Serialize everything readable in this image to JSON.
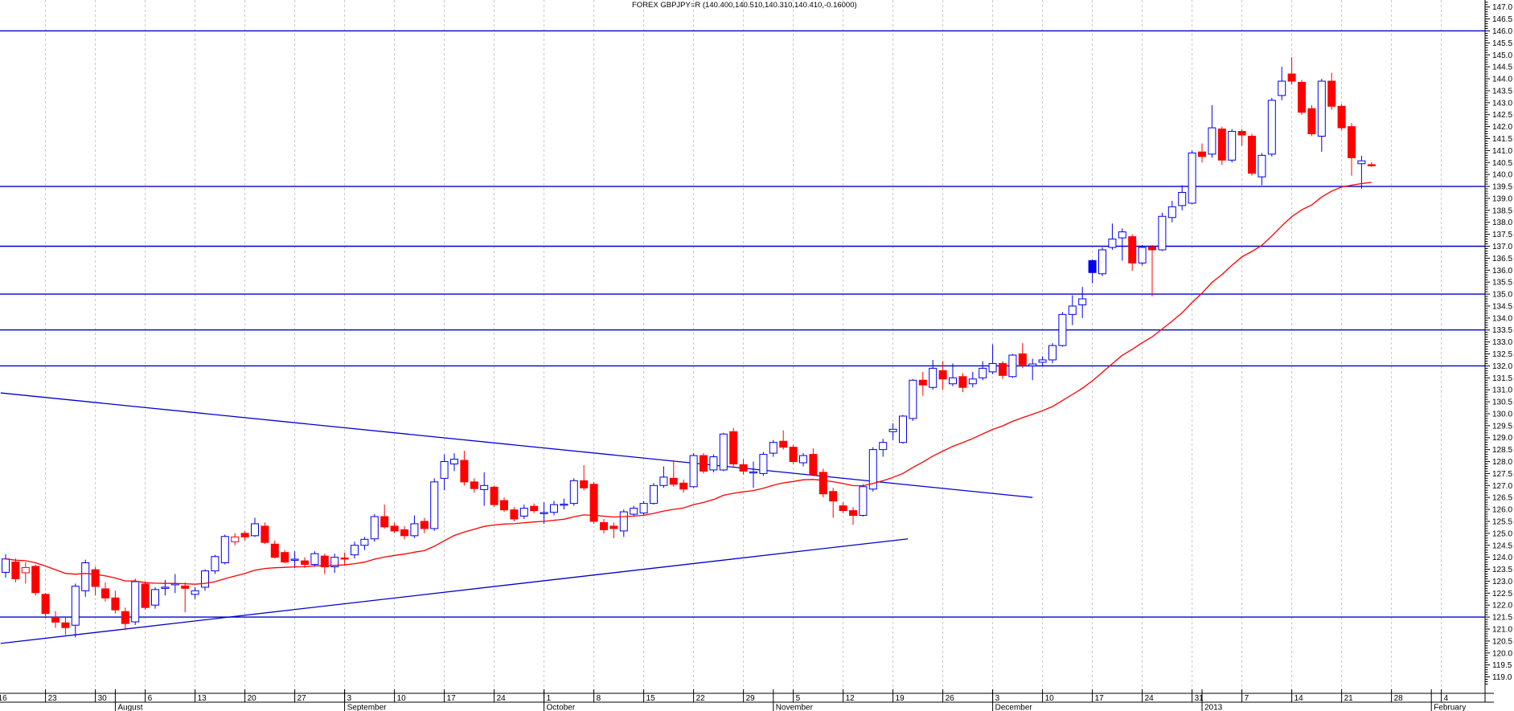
{
  "window": {
    "title": "FOREX GBPJPY=R (140.400,140.510,140.310,140.410,-0.16000)"
  },
  "colors": {
    "background": "#FFFFFF",
    "up_candle": "#0000EE",
    "up_fill": "#FFFFFF",
    "down_candle": "#FF0000",
    "special_candle_fill": "#0000EE",
    "ma_line": "#FF0000",
    "level_line": "#0000CD",
    "trend_line": "#0000CD",
    "gridline": "#C6C6C6",
    "axis": "#000000"
  },
  "chart_data": {
    "type": "candlestick",
    "title": "FOREX GBPJPY=R (140.400,140.510,140.310,140.410,-0.16000)",
    "symbol": "FOREX GBPJPY=R",
    "periodicity": "daily",
    "last_bar": {
      "open": 140.4,
      "high": 140.51,
      "low": 140.31,
      "close": 140.41,
      "change": -0.16
    },
    "y_axis": {
      "side": "right",
      "min": 119.0,
      "max": 147.0,
      "major_step": 0.5,
      "minor_step": 0.1,
      "label_decimals": 1
    },
    "x_axis": {
      "week_ticks": [
        {
          "bar": -1,
          "label": "16",
          "clipped": true
        },
        {
          "bar": 4,
          "label": "23"
        },
        {
          "bar": 9,
          "label": "30"
        },
        {
          "bar": 14,
          "label": "6"
        },
        {
          "bar": 19,
          "label": "13"
        },
        {
          "bar": 24,
          "label": "20"
        },
        {
          "bar": 29,
          "label": "27"
        },
        {
          "bar": 34,
          "label": "3"
        },
        {
          "bar": 39,
          "label": "10"
        },
        {
          "bar": 44,
          "label": "17"
        },
        {
          "bar": 49,
          "label": "24"
        },
        {
          "bar": 54,
          "label": "1"
        },
        {
          "bar": 59,
          "label": "8"
        },
        {
          "bar": 64,
          "label": "15"
        },
        {
          "bar": 69,
          "label": "22"
        },
        {
          "bar": 74,
          "label": "29"
        },
        {
          "bar": 79,
          "label": "5"
        },
        {
          "bar": 84,
          "label": "12"
        },
        {
          "bar": 89,
          "label": "19"
        },
        {
          "bar": 94,
          "label": "26"
        },
        {
          "bar": 99,
          "label": "3"
        },
        {
          "bar": 104,
          "label": "10"
        },
        {
          "bar": 109,
          "label": "17"
        },
        {
          "bar": 114,
          "label": "24"
        },
        {
          "bar": 119,
          "label": "31"
        },
        {
          "bar": 124,
          "label": "7"
        },
        {
          "bar": 129,
          "label": "14"
        },
        {
          "bar": 134,
          "label": "21"
        },
        {
          "bar": 139,
          "label": "28"
        },
        {
          "bar": 144,
          "label": "4"
        }
      ],
      "month_ticks": [
        {
          "bar": 11,
          "label": "August"
        },
        {
          "bar": 34,
          "label": "September"
        },
        {
          "bar": 54,
          "label": "October"
        },
        {
          "bar": 77,
          "label": "November"
        },
        {
          "bar": 99,
          "label": "December"
        },
        {
          "bar": 120,
          "label": "2013"
        },
        {
          "bar": 143,
          "label": "February"
        }
      ]
    },
    "horizontal_lines": [
      146.0,
      139.5,
      137.0,
      135.0,
      133.5,
      132.0,
      121.5
    ],
    "trendlines": [
      {
        "from_bar": -0.5,
        "from_price": 130.87,
        "to_bar": 103,
        "to_price": 126.5,
        "direction": "down"
      },
      {
        "from_bar": -0.5,
        "from_price": 120.4,
        "to_bar": 90.5,
        "to_price": 124.77,
        "direction": "up"
      }
    ],
    "overlays": {
      "ma": {
        "type": "ema",
        "period": 30,
        "color": "#FF0000"
      }
    },
    "candle_format": [
      "date",
      "open",
      "high",
      "low",
      "close",
      "style"
    ],
    "style_legend": {
      "u": "hollow blue (up)",
      "d": "solid red (down)",
      "hd": "hollow red",
      "sb": "solid blue"
    },
    "candles": [
      [
        "2012-07-17",
        123.37,
        124.13,
        123.15,
        123.93,
        "u"
      ],
      [
        "2012-07-18",
        123.8,
        123.95,
        122.95,
        123.1,
        "d"
      ],
      [
        "2012-07-19",
        123.35,
        123.8,
        122.9,
        123.57,
        "hd"
      ],
      [
        "2012-07-20",
        123.62,
        123.7,
        122.4,
        122.52,
        "d"
      ],
      [
        "2012-07-23",
        122.45,
        122.5,
        121.45,
        121.65,
        "d"
      ],
      [
        "2012-07-24",
        121.49,
        121.75,
        121.05,
        121.29,
        "d"
      ],
      [
        "2012-07-25",
        121.26,
        121.5,
        120.75,
        121.06,
        "d"
      ],
      [
        "2012-07-26",
        121.16,
        122.9,
        120.65,
        122.79,
        "u"
      ],
      [
        "2012-07-27",
        122.6,
        123.9,
        122.35,
        123.77,
        "u"
      ],
      [
        "2012-07-30",
        123.48,
        123.6,
        122.4,
        122.78,
        "d"
      ],
      [
        "2012-07-31",
        122.68,
        122.95,
        122.15,
        122.3,
        "d"
      ],
      [
        "2012-08-01",
        122.3,
        122.6,
        121.65,
        121.8,
        "d"
      ],
      [
        "2012-08-02",
        121.73,
        121.9,
        120.95,
        121.23,
        "d"
      ],
      [
        "2012-08-03",
        121.3,
        123.1,
        121.17,
        122.98,
        "u"
      ],
      [
        "2012-08-06",
        122.88,
        123.0,
        121.8,
        121.9,
        "d"
      ],
      [
        "2012-08-07",
        122.0,
        122.75,
        121.85,
        122.65,
        "u"
      ],
      [
        "2012-08-08",
        122.7,
        123.05,
        122.4,
        122.75,
        "u"
      ],
      [
        "2012-08-09",
        122.85,
        123.3,
        122.5,
        122.9,
        "u"
      ],
      [
        "2012-08-10",
        122.8,
        122.95,
        121.7,
        122.7,
        "d"
      ],
      [
        "2012-08-13",
        122.45,
        122.75,
        122.25,
        122.6,
        "u"
      ],
      [
        "2012-08-14",
        122.75,
        123.5,
        122.6,
        123.43,
        "u"
      ],
      [
        "2012-08-15",
        123.43,
        124.1,
        123.3,
        124.03,
        "u"
      ],
      [
        "2012-08-16",
        123.77,
        124.95,
        123.7,
        124.87,
        "u"
      ],
      [
        "2012-08-17",
        124.65,
        125.0,
        124.5,
        124.85,
        "hd"
      ],
      [
        "2012-08-20",
        125.0,
        125.1,
        124.7,
        124.85,
        "d"
      ],
      [
        "2012-08-21",
        124.9,
        125.65,
        124.85,
        125.4,
        "u"
      ],
      [
        "2012-08-22",
        125.3,
        125.45,
        124.55,
        124.62,
        "d"
      ],
      [
        "2012-08-23",
        124.55,
        124.7,
        123.95,
        124.0,
        "d"
      ],
      [
        "2012-08-24",
        124.2,
        124.3,
        123.75,
        123.8,
        "d"
      ],
      [
        "2012-08-27",
        123.88,
        124.25,
        123.55,
        123.92,
        "u"
      ],
      [
        "2012-08-28",
        123.85,
        124.0,
        123.55,
        123.7,
        "d"
      ],
      [
        "2012-08-29",
        123.7,
        124.25,
        123.6,
        124.15,
        "u"
      ],
      [
        "2012-08-30",
        124.05,
        124.15,
        123.3,
        123.6,
        "d"
      ],
      [
        "2012-08-31",
        123.6,
        124.15,
        123.35,
        124.0,
        "u"
      ],
      [
        "2012-09-03",
        123.97,
        124.2,
        123.7,
        123.93,
        "d"
      ],
      [
        "2012-09-04",
        124.1,
        124.65,
        123.95,
        124.5,
        "u"
      ],
      [
        "2012-09-05",
        124.5,
        124.85,
        124.3,
        124.75,
        "u"
      ],
      [
        "2012-09-06",
        124.77,
        125.8,
        124.65,
        125.7,
        "u"
      ],
      [
        "2012-09-07",
        125.7,
        126.2,
        125.2,
        125.27,
        "d"
      ],
      [
        "2012-09-10",
        125.3,
        125.45,
        125.0,
        125.1,
        "d"
      ],
      [
        "2012-09-11",
        125.15,
        125.3,
        124.75,
        124.9,
        "d"
      ],
      [
        "2012-09-12",
        124.9,
        125.75,
        124.8,
        125.4,
        "u"
      ],
      [
        "2012-09-13",
        125.5,
        125.65,
        125.0,
        125.2,
        "d"
      ],
      [
        "2012-09-14",
        125.2,
        127.3,
        125.1,
        127.15,
        "u"
      ],
      [
        "2012-09-17",
        127.3,
        128.3,
        126.8,
        128.0,
        "u"
      ],
      [
        "2012-09-18",
        127.9,
        128.35,
        127.6,
        128.1,
        "u"
      ],
      [
        "2012-09-19",
        128.05,
        128.45,
        127.0,
        127.15,
        "d"
      ],
      [
        "2012-09-20",
        127.15,
        127.3,
        126.7,
        126.87,
        "d"
      ],
      [
        "2012-09-21",
        126.83,
        127.55,
        126.15,
        127.0,
        "u"
      ],
      [
        "2012-09-24",
        126.93,
        127.0,
        126.1,
        126.2,
        "d"
      ],
      [
        "2012-09-25",
        126.37,
        126.5,
        125.9,
        125.98,
        "d"
      ],
      [
        "2012-09-26",
        125.98,
        126.1,
        125.5,
        125.6,
        "d"
      ],
      [
        "2012-09-27",
        125.72,
        126.2,
        125.6,
        126.05,
        "u"
      ],
      [
        "2012-09-28",
        126.13,
        126.25,
        125.85,
        125.95,
        "d"
      ],
      [
        "2012-10-01",
        125.83,
        126.3,
        125.4,
        125.87,
        "u"
      ],
      [
        "2012-10-02",
        125.88,
        126.35,
        125.75,
        126.2,
        "u"
      ],
      [
        "2012-10-03",
        126.2,
        126.45,
        126.0,
        126.22,
        "u"
      ],
      [
        "2012-10-04",
        126.25,
        127.3,
        126.15,
        127.2,
        "u"
      ],
      [
        "2012-10-05",
        127.2,
        127.85,
        126.8,
        126.9,
        "d"
      ],
      [
        "2012-10-08",
        127.05,
        127.15,
        125.4,
        125.5,
        "d"
      ],
      [
        "2012-10-09",
        125.45,
        125.6,
        125.0,
        125.15,
        "d"
      ],
      [
        "2012-10-10",
        125.3,
        125.45,
        124.8,
        125.2,
        "d"
      ],
      [
        "2012-10-11",
        125.1,
        126.0,
        124.85,
        125.9,
        "u"
      ],
      [
        "2012-10-12",
        125.8,
        126.15,
        125.7,
        126.05,
        "u"
      ],
      [
        "2012-10-15",
        125.85,
        126.35,
        125.75,
        126.25,
        "u"
      ],
      [
        "2012-10-16",
        126.25,
        127.1,
        126.2,
        127.0,
        "u"
      ],
      [
        "2012-10-17",
        127.0,
        127.8,
        126.9,
        127.35,
        "u"
      ],
      [
        "2012-10-18",
        127.3,
        128.05,
        126.95,
        127.05,
        "d"
      ],
      [
        "2012-10-19",
        127.1,
        127.25,
        126.7,
        126.85,
        "d"
      ],
      [
        "2012-10-22",
        126.95,
        128.35,
        126.9,
        128.25,
        "u"
      ],
      [
        "2012-10-23",
        128.25,
        128.35,
        127.5,
        127.6,
        "d"
      ],
      [
        "2012-10-24",
        127.65,
        128.3,
        127.55,
        128.2,
        "u"
      ],
      [
        "2012-10-25",
        127.65,
        129.2,
        127.6,
        129.15,
        "u"
      ],
      [
        "2012-10-26",
        129.25,
        129.4,
        127.75,
        127.9,
        "d"
      ],
      [
        "2012-10-29",
        127.87,
        128.1,
        127.45,
        127.6,
        "d"
      ],
      [
        "2012-10-30",
        127.53,
        128.0,
        126.9,
        127.57,
        "u"
      ],
      [
        "2012-10-31",
        127.5,
        128.4,
        127.4,
        128.3,
        "u"
      ],
      [
        "2012-11-01",
        128.35,
        128.9,
        128.2,
        128.8,
        "u"
      ],
      [
        "2012-11-02",
        128.85,
        129.3,
        128.5,
        128.6,
        "d"
      ],
      [
        "2012-11-05",
        128.6,
        128.7,
        127.9,
        128.0,
        "d"
      ],
      [
        "2012-11-06",
        127.95,
        128.35,
        127.8,
        128.25,
        "u"
      ],
      [
        "2012-11-07",
        128.3,
        128.55,
        127.4,
        127.45,
        "d"
      ],
      [
        "2012-11-08",
        127.55,
        127.7,
        126.5,
        126.65,
        "d"
      ],
      [
        "2012-11-09",
        126.75,
        126.9,
        125.65,
        126.35,
        "d"
      ],
      [
        "2012-11-12",
        126.15,
        126.3,
        125.85,
        125.95,
        "d"
      ],
      [
        "2012-11-13",
        125.95,
        126.1,
        125.35,
        125.75,
        "d"
      ],
      [
        "2012-11-14",
        125.75,
        127.05,
        125.7,
        126.95,
        "u"
      ],
      [
        "2012-11-15",
        126.85,
        128.6,
        126.75,
        128.5,
        "u"
      ],
      [
        "2012-11-16",
        128.5,
        128.95,
        128.2,
        128.8,
        "u"
      ],
      [
        "2012-11-19",
        129.25,
        129.6,
        128.9,
        129.35,
        "u"
      ],
      [
        "2012-11-20",
        128.8,
        129.95,
        128.75,
        129.9,
        "u"
      ],
      [
        "2012-11-21",
        129.8,
        131.45,
        129.7,
        131.4,
        "u"
      ],
      [
        "2012-11-22",
        131.4,
        131.75,
        130.75,
        131.2,
        "d"
      ],
      [
        "2012-11-23",
        131.1,
        132.25,
        131.0,
        131.9,
        "u"
      ],
      [
        "2012-11-26",
        131.8,
        132.2,
        131.0,
        131.45,
        "d"
      ],
      [
        "2012-11-27",
        131.25,
        132.1,
        131.15,
        131.5,
        "u"
      ],
      [
        "2012-11-28",
        131.55,
        131.7,
        130.9,
        131.1,
        "d"
      ],
      [
        "2012-11-29",
        131.25,
        131.75,
        131.1,
        131.45,
        "u"
      ],
      [
        "2012-11-30",
        131.5,
        132.2,
        131.4,
        131.9,
        "u"
      ],
      [
        "2012-12-03",
        131.75,
        132.9,
        131.65,
        132.1,
        "u"
      ],
      [
        "2012-12-04",
        132.1,
        132.2,
        131.45,
        131.6,
        "d"
      ],
      [
        "2012-12-05",
        131.55,
        132.5,
        131.5,
        132.45,
        "u"
      ],
      [
        "2012-12-06",
        132.5,
        132.95,
        131.9,
        132.05,
        "d"
      ],
      [
        "2012-12-07",
        132.0,
        132.3,
        131.4,
        132.08,
        "u"
      ],
      [
        "2012-12-10",
        132.15,
        132.4,
        132.0,
        132.25,
        "u"
      ],
      [
        "2012-12-11",
        132.25,
        132.95,
        132.1,
        132.85,
        "u"
      ],
      [
        "2012-12-12",
        132.85,
        134.25,
        132.8,
        134.15,
        "u"
      ],
      [
        "2012-12-13",
        134.15,
        134.95,
        133.7,
        134.5,
        "u"
      ],
      [
        "2012-12-14",
        134.55,
        135.3,
        134.0,
        134.8,
        "u"
      ],
      [
        "2012-12-17",
        136.4,
        136.45,
        135.45,
        135.9,
        "sb"
      ],
      [
        "2012-12-18",
        135.85,
        136.95,
        135.75,
        136.85,
        "u"
      ],
      [
        "2012-12-19",
        136.95,
        137.95,
        136.85,
        137.3,
        "u"
      ],
      [
        "2012-12-20",
        137.35,
        137.75,
        136.4,
        137.6,
        "u"
      ],
      [
        "2012-12-21",
        137.4,
        137.5,
        135.97,
        136.3,
        "d"
      ],
      [
        "2012-12-24",
        136.3,
        137.05,
        136.2,
        136.95,
        "u"
      ],
      [
        "2012-12-25",
        136.97,
        137.05,
        134.9,
        136.85,
        "d"
      ],
      [
        "2012-12-26",
        136.85,
        138.4,
        136.8,
        138.25,
        "u"
      ],
      [
        "2012-12-27",
        138.2,
        138.9,
        138.0,
        138.65,
        "u"
      ],
      [
        "2012-12-28",
        138.7,
        139.55,
        138.5,
        139.25,
        "u"
      ],
      [
        "2012-12-31",
        138.8,
        141.0,
        138.75,
        140.9,
        "u"
      ],
      [
        "2013-01-01",
        140.94,
        141.3,
        140.5,
        140.75,
        "d"
      ],
      [
        "2013-01-02",
        140.85,
        142.9,
        140.7,
        141.95,
        "u"
      ],
      [
        "2013-01-03",
        141.9,
        142.0,
        140.4,
        140.6,
        "d"
      ],
      [
        "2013-01-04",
        140.6,
        141.9,
        140.5,
        141.8,
        "u"
      ],
      [
        "2013-01-07",
        141.8,
        141.9,
        141.2,
        141.65,
        "d"
      ],
      [
        "2013-01-08",
        141.6,
        141.7,
        139.95,
        140.05,
        "d"
      ],
      [
        "2013-01-09",
        139.9,
        140.9,
        139.55,
        140.8,
        "u"
      ],
      [
        "2013-01-10",
        140.85,
        143.2,
        140.75,
        143.1,
        "u"
      ],
      [
        "2013-01-11",
        143.3,
        144.5,
        143.1,
        143.9,
        "u"
      ],
      [
        "2013-01-14",
        144.2,
        144.9,
        143.75,
        143.9,
        "d"
      ],
      [
        "2013-01-15",
        143.85,
        143.95,
        142.5,
        142.6,
        "d"
      ],
      [
        "2013-01-16",
        142.75,
        142.9,
        141.6,
        141.7,
        "d"
      ],
      [
        "2013-01-17",
        141.6,
        144.0,
        140.95,
        143.9,
        "u"
      ],
      [
        "2013-01-18",
        143.9,
        144.25,
        142.7,
        142.85,
        "d"
      ],
      [
        "2013-01-21",
        142.85,
        142.95,
        141.85,
        141.95,
        "d"
      ],
      [
        "2013-01-22",
        142.0,
        142.15,
        139.95,
        140.7,
        "d"
      ],
      [
        "2013-01-23",
        140.45,
        140.78,
        139.4,
        140.57,
        "u"
      ],
      [
        "2013-01-24",
        140.4,
        140.51,
        140.31,
        140.41,
        "d"
      ]
    ]
  }
}
